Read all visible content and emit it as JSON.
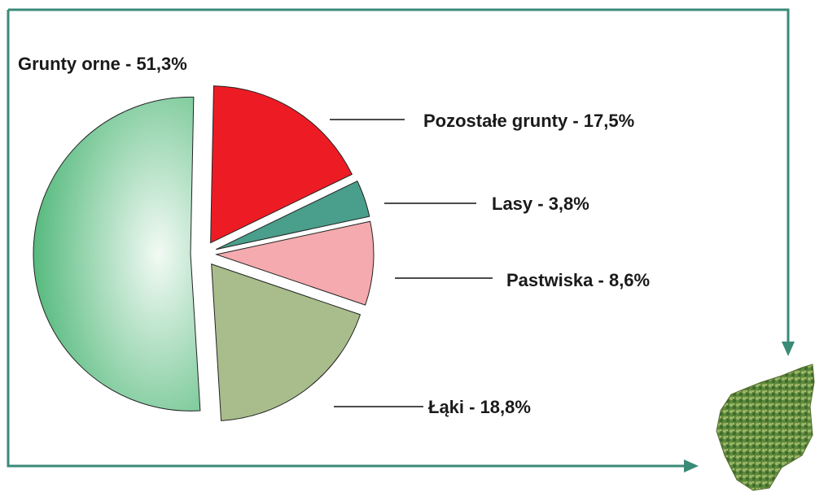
{
  "chart_data": {
    "type": "pie",
    "categories": [
      "Pozostałe grunty",
      "Lasy",
      "Pastwiska",
      "Łąki",
      "Grunty orne"
    ],
    "values": [
      17.5,
      3.8,
      8.6,
      18.8,
      51.3
    ],
    "value_labels": [
      "Pozostałe grunty - 17,5%",
      "Lasy - 3,8%",
      "Pastwiska - 8,6%",
      "Łąki - 18,8%",
      "Grunty orne - 51,3%"
    ],
    "colors": [
      "#ed1c24",
      "#4a9e8c",
      "#f4aaae",
      "#a9bd8c",
      "#4cb676"
    ]
  }
}
